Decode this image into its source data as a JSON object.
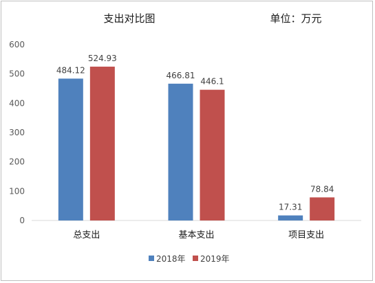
{
  "chart_data": {
    "type": "bar",
    "title": "支出对比图",
    "unit": "单位：万元",
    "categories": [
      "总支出",
      "基本支出",
      "项目支出"
    ],
    "series": [
      {
        "name": "2018年",
        "values": [
          484.12,
          466.81,
          17.31
        ],
        "labels": [
          "484.12",
          "466.81",
          "17.31"
        ],
        "color": "#4f81bd"
      },
      {
        "name": "2019年",
        "values": [
          524.93,
          446.1,
          78.84
        ],
        "labels": [
          "524.93",
          "446.1",
          "78.84"
        ],
        "color": "#c0504d"
      }
    ],
    "ylim": [
      0,
      600
    ],
    "yticks": [
      "0",
      "100",
      "200",
      "300",
      "400",
      "500",
      "600"
    ],
    "grid": false,
    "legend_position": "bottom"
  }
}
